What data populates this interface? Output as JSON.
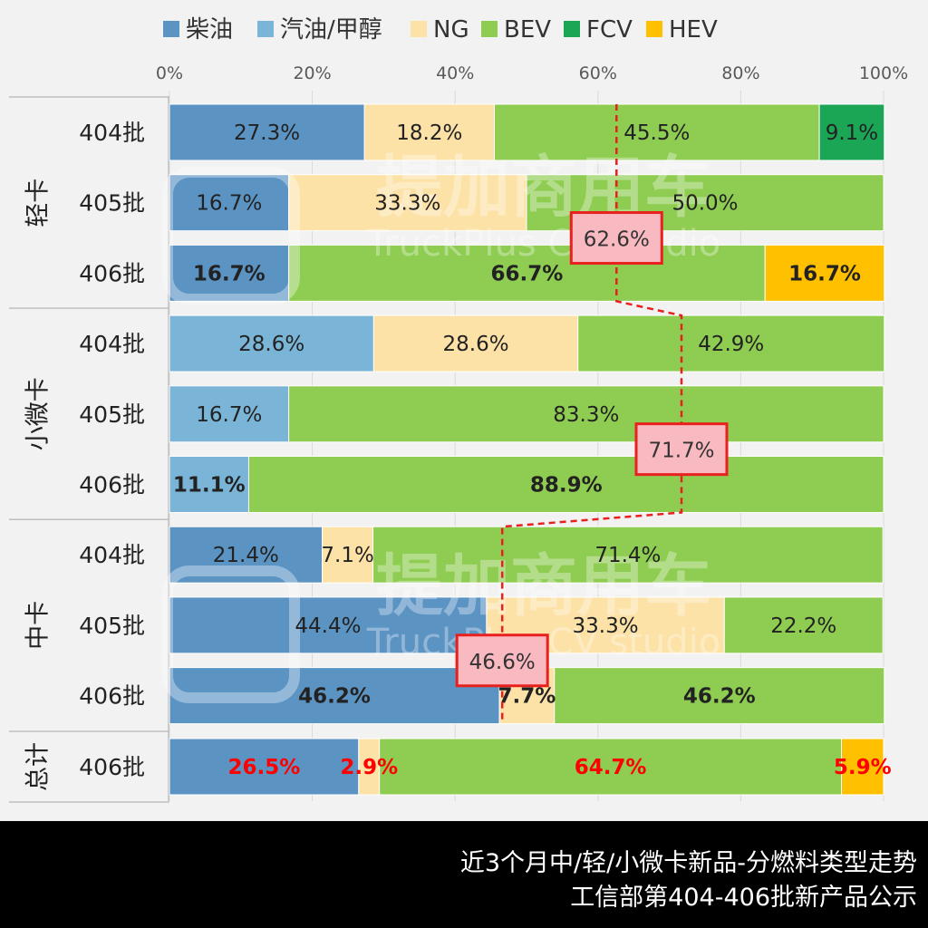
{
  "chart_data": {
    "type": "bar",
    "orientation": "horizontal",
    "stacked": true,
    "percent_stacked": true,
    "legend_position": "top",
    "xlim": [
      0,
      100
    ],
    "x_ticks": [
      "0%",
      "20%",
      "40%",
      "60%",
      "80%",
      "100%"
    ],
    "grid": true,
    "legend": [
      {
        "name": "柴油",
        "color": "#5b93c3"
      },
      {
        "name": "汽油/甲醇",
        "color": "#7ab5d7"
      },
      {
        "name": "NG",
        "color": "#fde2a8"
      },
      {
        "name": "BEV",
        "color": "#8fcd52"
      },
      {
        "name": "FCV",
        "color": "#1aa655"
      },
      {
        "name": "HEV",
        "color": "#ffc000"
      }
    ],
    "groups": [
      {
        "label": "轻卡",
        "rows": [
          {
            "label": "404批",
            "segments": [
              {
                "series": "柴油",
                "value": 27.3,
                "label": "27.3%"
              },
              {
                "series": "NG",
                "value": 18.2,
                "label": "18.2%"
              },
              {
                "series": "BEV",
                "value": 45.5,
                "label": "45.5%"
              },
              {
                "series": "FCV",
                "value": 9.1,
                "label": "9.1%"
              }
            ]
          },
          {
            "label": "405批",
            "segments": [
              {
                "series": "柴油",
                "value": 16.7,
                "label": "16.7%"
              },
              {
                "series": "NG",
                "value": 33.3,
                "label": "33.3%"
              },
              {
                "series": "BEV",
                "value": 50.0,
                "label": "50.0%"
              }
            ]
          },
          {
            "label": "406批",
            "bold": true,
            "segments": [
              {
                "series": "柴油",
                "value": 16.7,
                "label": "16.7%"
              },
              {
                "series": "BEV",
                "value": 66.7,
                "label": "66.7%"
              },
              {
                "series": "HEV",
                "value": 16.7,
                "label": "16.7%"
              }
            ]
          }
        ]
      },
      {
        "label": "小微卡",
        "rows": [
          {
            "label": "404批",
            "segments": [
              {
                "series": "汽油/甲醇",
                "value": 28.6,
                "label": "28.6%"
              },
              {
                "series": "NG",
                "value": 28.6,
                "label": "28.6%"
              },
              {
                "series": "BEV",
                "value": 42.9,
                "label": "42.9%"
              }
            ]
          },
          {
            "label": "405批",
            "segments": [
              {
                "series": "汽油/甲醇",
                "value": 16.7,
                "label": "16.7%"
              },
              {
                "series": "BEV",
                "value": 83.3,
                "label": "83.3%"
              }
            ]
          },
          {
            "label": "406批",
            "bold": true,
            "segments": [
              {
                "series": "汽油/甲醇",
                "value": 11.1,
                "label": "11.1%"
              },
              {
                "series": "BEV",
                "value": 88.9,
                "label": "88.9%"
              }
            ]
          }
        ]
      },
      {
        "label": "中卡",
        "rows": [
          {
            "label": "404批",
            "segments": [
              {
                "series": "柴油",
                "value": 21.4,
                "label": "21.4%"
              },
              {
                "series": "NG",
                "value": 7.1,
                "label": "7.1%"
              },
              {
                "series": "BEV",
                "value": 71.4,
                "label": "71.4%"
              }
            ]
          },
          {
            "label": "405批",
            "segments": [
              {
                "series": "柴油",
                "value": 44.4,
                "label": "44.4%"
              },
              {
                "series": "NG",
                "value": 33.3,
                "label": "33.3%"
              },
              {
                "series": "BEV",
                "value": 22.2,
                "label": "22.2%"
              }
            ]
          },
          {
            "label": "406批",
            "bold": true,
            "segments": [
              {
                "series": "柴油",
                "value": 46.2,
                "label": "46.2%"
              },
              {
                "series": "NG",
                "value": 7.7,
                "label": "7.7%"
              },
              {
                "series": "BEV",
                "value": 46.2,
                "label": "46.2%"
              }
            ]
          }
        ]
      },
      {
        "label": "总计",
        "rows": [
          {
            "label": "406批",
            "bold": true,
            "label_color": "#ff0000",
            "segments": [
              {
                "series": "柴油",
                "value": 26.5,
                "label": "26.5%"
              },
              {
                "series": "NG",
                "value": 2.9,
                "label": "2.9%"
              },
              {
                "series": "BEV",
                "value": 64.7,
                "label": "64.7%"
              },
              {
                "series": "HEV",
                "value": 5.9,
                "label": "5.9%"
              }
            ]
          }
        ]
      }
    ],
    "annotations": [
      {
        "text": "62.6%",
        "group": "轻卡",
        "value": 62.6
      },
      {
        "text": "71.7%",
        "group": "小微卡",
        "value": 71.7
      },
      {
        "text": "46.6%",
        "group": "中卡",
        "value": 46.6
      }
    ],
    "trend_line_color": "#e8201e",
    "watermark": "提加商用车",
    "watermark_sub": "TruckPlus CV studio"
  },
  "footer": {
    "line1": "近3个月中/轻/小微卡新品-分燃料类型走势",
    "line2": "工信部第404-406批新产品公示"
  }
}
